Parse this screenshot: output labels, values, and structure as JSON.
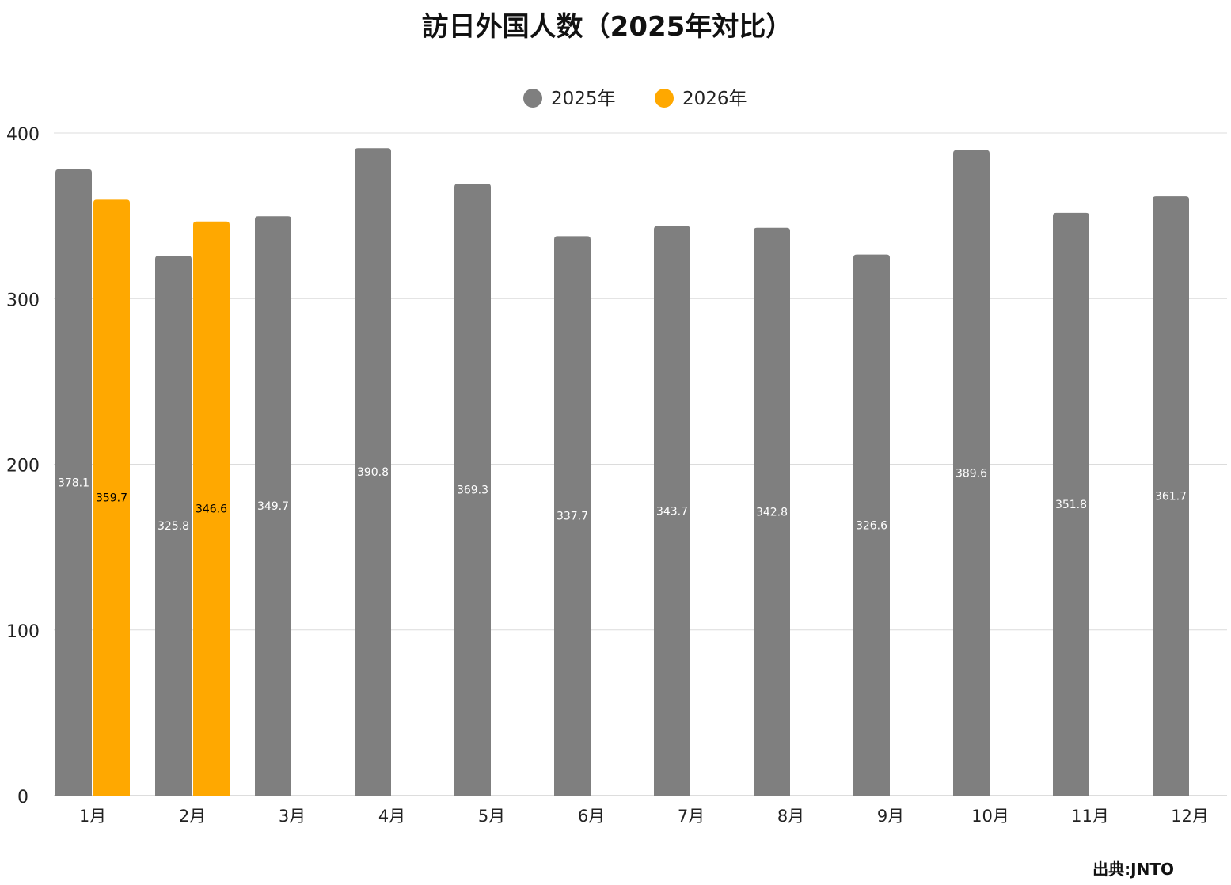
{
  "chart_data": {
    "type": "bar",
    "title": "訪日外国人数（2025年対比）",
    "categories": [
      "1月",
      "2月",
      "3月",
      "4月",
      "5月",
      "6月",
      "7月",
      "8月",
      "9月",
      "10月",
      "11月",
      "12月"
    ],
    "series": [
      {
        "name": "2025年",
        "color": "#7f7f7f",
        "label_color": "#ffffff",
        "values": [
          378.1,
          325.8,
          349.7,
          390.8,
          369.3,
          337.7,
          343.7,
          342.8,
          326.6,
          389.6,
          351.8,
          361.7
        ]
      },
      {
        "name": "2026年",
        "color": "#ffa800",
        "label_color": "#000000",
        "values": [
          359.7,
          346.6,
          null,
          null,
          null,
          null,
          null,
          null,
          null,
          null,
          null,
          null
        ]
      }
    ],
    "xlabel": "",
    "ylabel": "",
    "ylim": [
      0,
      400
    ],
    "yticks": [
      0,
      100,
      200,
      300,
      400
    ],
    "grid": true,
    "legend": "top-center",
    "source": "出典:JNTO"
  }
}
